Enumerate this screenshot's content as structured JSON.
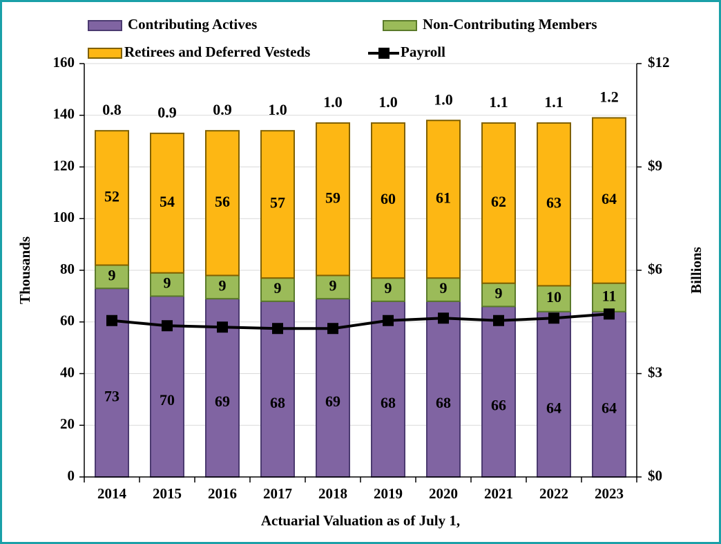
{
  "chart_data": {
    "type": "bar",
    "stacked": true,
    "x_label": "Actuarial Valuation as of July 1,",
    "y_label": "Thousands",
    "y2_label": "Billions",
    "categories": [
      "2014",
      "2015",
      "2016",
      "2017",
      "2018",
      "2019",
      "2020",
      "2021",
      "2022",
      "2023"
    ],
    "series": [
      {
        "name": "Contributing Actives",
        "color": "#8064a2",
        "values": [
          73,
          70,
          69,
          68,
          69,
          68,
          68,
          66,
          64,
          64
        ]
      },
      {
        "name": "Non-Contributing Members",
        "color": "#9bbb59",
        "values": [
          9,
          9,
          9,
          9,
          9,
          9,
          9,
          9,
          10,
          11
        ]
      },
      {
        "name": "Retirees and Deferred Vesteds",
        "color": "#fdb714",
        "values": [
          52,
          54,
          56,
          57,
          59,
          60,
          61,
          62,
          63,
          64
        ]
      },
      {
        "name": "Payroll",
        "color": "#000000",
        "type": "line",
        "axis": "y2",
        "values": [
          4.54,
          4.39,
          4.35,
          4.31,
          4.31,
          4.54,
          4.61,
          4.54,
          4.61,
          4.73
        ]
      }
    ],
    "bar_top_labels": [
      "0.8",
      "0.9",
      "0.9",
      "1.0",
      "1.0",
      "1.0",
      "1.0",
      "1.1",
      "1.1",
      "1.2"
    ],
    "ylim": [
      0,
      160
    ],
    "yticks": [
      0,
      20,
      40,
      60,
      80,
      100,
      120,
      140,
      160
    ],
    "y2lim": [
      0,
      12
    ],
    "y2ticks": [
      {
        "value": 0,
        "label": "$0"
      },
      {
        "value": 3,
        "label": "$3"
      },
      {
        "value": 6,
        "label": "$6"
      },
      {
        "value": 9,
        "label": "$9"
      },
      {
        "value": 12,
        "label": "$12"
      }
    ],
    "grid": true
  }
}
